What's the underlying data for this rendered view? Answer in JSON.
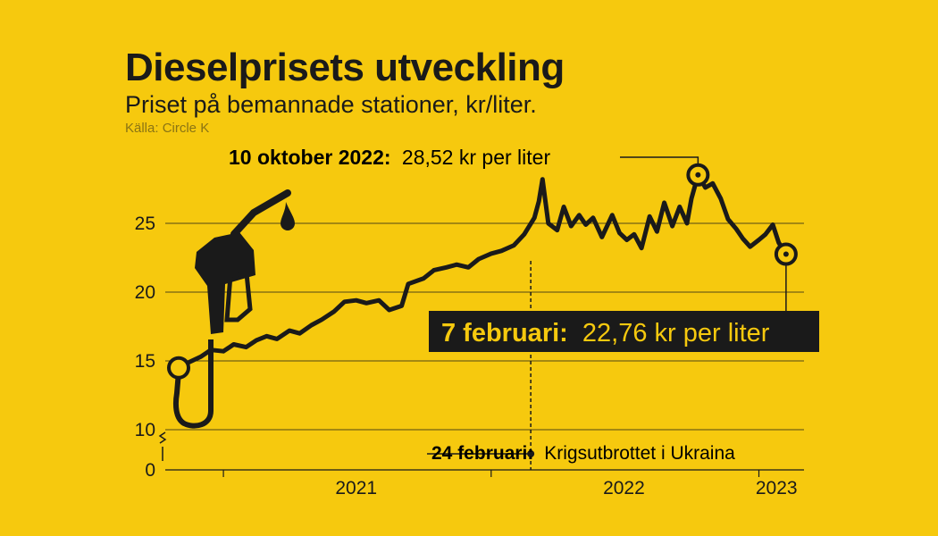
{
  "header": {
    "title": "Dieselprisets utveckling",
    "subtitle": "Priset på bemannade stationer, kr/liter.",
    "source": "Källa: Circle K"
  },
  "chart_data": {
    "type": "line",
    "title": "Dieselprisets utveckling",
    "subtitle": "Priset på bemannade stationer, kr/liter.",
    "source": "Källa: Circle K",
    "ylabel": "",
    "xlabel": "",
    "y_ticks": [
      "0",
      "10",
      "15",
      "20",
      "25"
    ],
    "x_ticks": [
      "2021",
      "2022",
      "2023"
    ],
    "ylim": [
      10,
      29
    ],
    "y_axis_break": "10–0",
    "x_domain": [
      "2020-11-01",
      "2023-02-12"
    ],
    "grid": "horizontal",
    "series": [
      {
        "values": [
          [
            "2020-11-01",
            14.5
          ],
          [
            "2020-11-15",
            14.9
          ],
          [
            "2020-12-01",
            15.3
          ],
          [
            "2020-12-15",
            15.8
          ],
          [
            "2021-01-01",
            15.7
          ],
          [
            "2021-01-15",
            16.2
          ],
          [
            "2021-02-01",
            16.0
          ],
          [
            "2021-02-15",
            16.5
          ],
          [
            "2021-03-01",
            16.8
          ],
          [
            "2021-03-15",
            16.6
          ],
          [
            "2021-04-01",
            17.2
          ],
          [
            "2021-04-15",
            17.0
          ],
          [
            "2021-05-01",
            17.6
          ],
          [
            "2021-05-15",
            18.0
          ],
          [
            "2021-06-01",
            18.6
          ],
          [
            "2021-06-15",
            19.3
          ],
          [
            "2021-07-01",
            19.4
          ],
          [
            "2021-07-15",
            19.2
          ],
          [
            "2021-08-01",
            19.4
          ],
          [
            "2021-08-15",
            18.7
          ],
          [
            "2021-09-01",
            19.0
          ],
          [
            "2021-09-10",
            20.6
          ],
          [
            "2021-10-01",
            21.0
          ],
          [
            "2021-10-15",
            21.6
          ],
          [
            "2021-11-01",
            21.8
          ],
          [
            "2021-11-15",
            22.0
          ],
          [
            "2021-12-01",
            21.8
          ],
          [
            "2021-12-15",
            22.4
          ],
          [
            "2022-01-01",
            22.8
          ],
          [
            "2022-01-15",
            23.0
          ],
          [
            "2022-02-01",
            23.4
          ],
          [
            "2022-02-15",
            24.2
          ],
          [
            "2022-03-01",
            25.4
          ],
          [
            "2022-03-07",
            26.6
          ],
          [
            "2022-03-12",
            28.2
          ],
          [
            "2022-03-20",
            25.0
          ],
          [
            "2022-04-01",
            24.5
          ],
          [
            "2022-04-10",
            26.2
          ],
          [
            "2022-04-20",
            24.8
          ],
          [
            "2022-05-01",
            25.6
          ],
          [
            "2022-05-10",
            24.9
          ],
          [
            "2022-05-20",
            25.4
          ],
          [
            "2022-06-01",
            24.0
          ],
          [
            "2022-06-15",
            25.6
          ],
          [
            "2022-06-25",
            24.3
          ],
          [
            "2022-07-05",
            23.8
          ],
          [
            "2022-07-15",
            24.2
          ],
          [
            "2022-07-25",
            23.2
          ],
          [
            "2022-08-05",
            25.5
          ],
          [
            "2022-08-15",
            24.4
          ],
          [
            "2022-08-25",
            26.5
          ],
          [
            "2022-09-05",
            24.8
          ],
          [
            "2022-09-15",
            26.2
          ],
          [
            "2022-09-25",
            25.0
          ],
          [
            "2022-10-01",
            26.8
          ],
          [
            "2022-10-10",
            28.52
          ],
          [
            "2022-10-20",
            27.6
          ],
          [
            "2022-10-30",
            27.9
          ],
          [
            "2022-11-10",
            26.8
          ],
          [
            "2022-11-20",
            25.3
          ],
          [
            "2022-12-01",
            24.6
          ],
          [
            "2022-12-10",
            23.9
          ],
          [
            "2022-12-20",
            23.3
          ],
          [
            "2023-01-01",
            23.8
          ],
          [
            "2023-01-10",
            24.2
          ],
          [
            "2023-01-20",
            24.9
          ],
          [
            "2023-01-28",
            23.6
          ],
          [
            "2023-02-07",
            22.76
          ]
        ]
      }
    ],
    "annotations": [
      {
        "bold": "10 oktober 2022:",
        "text": "28,52 kr per liter",
        "date": "2022-10-10",
        "value": 28.52
      },
      {
        "bold": "7 februari:",
        "text": "22,76 kr per liter",
        "date": "2023-02-07",
        "value": 22.76
      },
      {
        "bold": "24 februari:",
        "text": "Krigsutbrottet i Ukraina",
        "date": "2022-02-24"
      }
    ]
  },
  "colors": {
    "background": "#F6C90E",
    "line": "#1a1a1a",
    "grid": "#1a1a1a",
    "source_text": "#8a7414",
    "label_box": "#1a1a1a",
    "label_box_text": "#F6C90E"
  },
  "icon": "fuel-nozzle-icon"
}
